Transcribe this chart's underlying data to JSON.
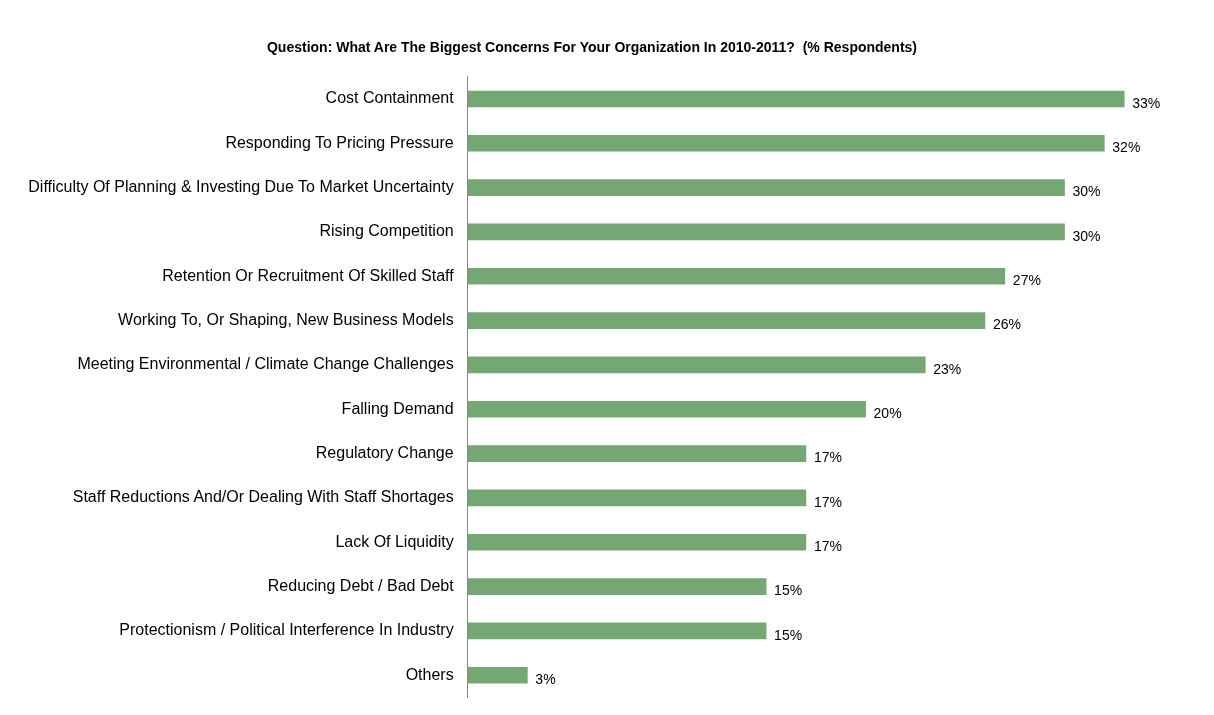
{
  "chart_data": {
    "type": "bar",
    "orientation": "horizontal",
    "title": "Question: What Are The Biggest Concerns For Your Organization In 2010-2011?  (% Respondents)",
    "categories": [
      "Cost Containment",
      "Responding To Pricing Pressure",
      "Difficulty Of Planning & Investing Due To Market Uncertainty",
      "Rising Competition",
      "Retention Or Recruitment Of Skilled Staff",
      "Working To, Or Shaping, New Business Models",
      "Meeting Environmental / Climate Change Challenges",
      "Falling Demand",
      "Regulatory Change",
      "Staff Reductions And/Or Dealing With Staff Shortages",
      "Lack Of Liquidity",
      "Reducing Debt / Bad Debt",
      "Protectionism / Political Interference In Industry",
      "Others"
    ],
    "values": [
      33,
      32,
      30,
      30,
      27,
      26,
      23,
      20,
      17,
      17,
      17,
      15,
      15,
      3
    ],
    "value_labels": [
      "33%",
      "32%",
      "30%",
      "30%",
      "27%",
      "26%",
      "23%",
      "20%",
      "17%",
      "17%",
      "17%",
      "15%",
      "15%",
      "3%"
    ],
    "color": "#75a775",
    "grid": false,
    "legend": false
  }
}
